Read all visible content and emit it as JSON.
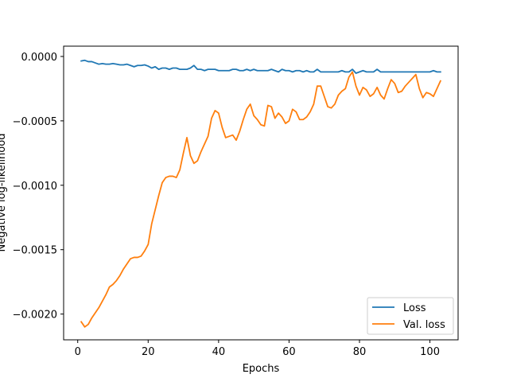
{
  "chart_data": {
    "type": "line",
    "title": "",
    "xlabel": "Epochs",
    "ylabel": "Negative log-likelihood",
    "xlim": [
      -4,
      108
    ],
    "ylim": [
      -0.0022,
      8e-05
    ],
    "xticks": [
      0,
      20,
      40,
      60,
      80,
      100
    ],
    "xtick_labels": [
      "0",
      "20",
      "40",
      "60",
      "80",
      "100"
    ],
    "yticks": [
      0,
      -0.0005,
      -0.001,
      -0.0015,
      -0.002
    ],
    "ytick_labels": [
      "0.0000",
      "−0.0005",
      "−0.0010",
      "−0.0015",
      "−0.0020"
    ],
    "grid": false,
    "legend_position": "bottom-right",
    "series": [
      {
        "name": "Loss",
        "color": "#1f77b4",
        "x_start": 1,
        "x_step": 1,
        "values": [
          -3.5e-05,
          -3e-05,
          -4e-05,
          -4e-05,
          -5e-05,
          -6e-05,
          -5.5e-05,
          -6e-05,
          -6e-05,
          -5.5e-05,
          -6e-05,
          -6.5e-05,
          -6.5e-05,
          -6e-05,
          -7e-05,
          -8e-05,
          -7e-05,
          -7e-05,
          -6.5e-05,
          -7.5e-05,
          -9e-05,
          -8e-05,
          -0.0001,
          -9e-05,
          -9e-05,
          -0.0001,
          -9e-05,
          -9e-05,
          -0.0001,
          -0.0001,
          -0.0001,
          -9e-05,
          -7e-05,
          -0.0001,
          -0.0001,
          -0.00011,
          -0.0001,
          -0.0001,
          -0.0001,
          -0.00011,
          -0.00011,
          -0.00011,
          -0.00011,
          -0.0001,
          -0.0001,
          -0.00011,
          -0.00011,
          -0.0001,
          -0.00011,
          -0.0001,
          -0.00011,
          -0.00011,
          -0.00011,
          -0.00011,
          -0.0001,
          -0.00011,
          -0.00012,
          -0.0001,
          -0.00011,
          -0.00011,
          -0.00012,
          -0.00011,
          -0.00011,
          -0.00012,
          -0.00011,
          -0.00012,
          -0.00012,
          -0.0001,
          -0.00012,
          -0.00012,
          -0.00012,
          -0.00012,
          -0.00012,
          -0.00012,
          -0.00011,
          -0.00012,
          -0.00012,
          -0.0001,
          -0.00013,
          -0.00012,
          -0.00011,
          -0.00012,
          -0.00012,
          -0.00012,
          -0.0001,
          -0.00012,
          -0.00012,
          -0.00012,
          -0.00012,
          -0.00012,
          -0.00012,
          -0.00012,
          -0.00012,
          -0.00012,
          -0.00012,
          -0.00012,
          -0.00012,
          -0.00012,
          -0.00012,
          -0.00012,
          -0.00011,
          -0.00012,
          -0.00012
        ]
      },
      {
        "name": "Val. loss",
        "color": "#ff7f0e",
        "x_start": 1,
        "x_step": 1,
        "values": [
          -0.00206,
          -0.0021,
          -0.00208,
          -0.00203,
          -0.00199,
          -0.00195,
          -0.0019,
          -0.00185,
          -0.00179,
          -0.00177,
          -0.00174,
          -0.0017,
          -0.00165,
          -0.00161,
          -0.00157,
          -0.00156,
          -0.00156,
          -0.00155,
          -0.00151,
          -0.00146,
          -0.0013,
          -0.00119,
          -0.00108,
          -0.00098,
          -0.00094,
          -0.00093,
          -0.00093,
          -0.00094,
          -0.00088,
          -0.00075,
          -0.00063,
          -0.00077,
          -0.00083,
          -0.00081,
          -0.00074,
          -0.00068,
          -0.00062,
          -0.00048,
          -0.00042,
          -0.00044,
          -0.00055,
          -0.00063,
          -0.00062,
          -0.00061,
          -0.00065,
          -0.00058,
          -0.00049,
          -0.00041,
          -0.00037,
          -0.00046,
          -0.00049,
          -0.00053,
          -0.00054,
          -0.00038,
          -0.00039,
          -0.00048,
          -0.00044,
          -0.00047,
          -0.00052,
          -0.0005,
          -0.00041,
          -0.00043,
          -0.00049,
          -0.00049,
          -0.00047,
          -0.00043,
          -0.00037,
          -0.00023,
          -0.00023,
          -0.00031,
          -0.00039,
          -0.0004,
          -0.00037,
          -0.0003,
          -0.00027,
          -0.00025,
          -0.00016,
          -0.00012,
          -0.00023,
          -0.0003,
          -0.00024,
          -0.00026,
          -0.00031,
          -0.00029,
          -0.00024,
          -0.0003,
          -0.00033,
          -0.00025,
          -0.00018,
          -0.00021,
          -0.00028,
          -0.00027,
          -0.00023,
          -0.0002,
          -0.00017,
          -0.00014,
          -0.00025,
          -0.00032,
          -0.00028,
          -0.00029,
          -0.00031,
          -0.00025,
          -0.00019
        ]
      }
    ]
  }
}
